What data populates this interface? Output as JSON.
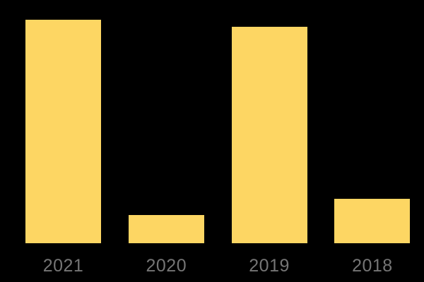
{
  "chart_data": {
    "type": "bar",
    "title": "",
    "xlabel": "",
    "ylabel": "",
    "categories": [
      "2021",
      "2020",
      "2019",
      "2018"
    ],
    "values": [
      100,
      12.6,
      96.8,
      19.9
    ],
    "ylim": [
      0,
      100
    ],
    "grid": false,
    "legend": false,
    "bar_color": "#FDD663",
    "tick_label_color": "#757575",
    "background_color": "#000000"
  }
}
